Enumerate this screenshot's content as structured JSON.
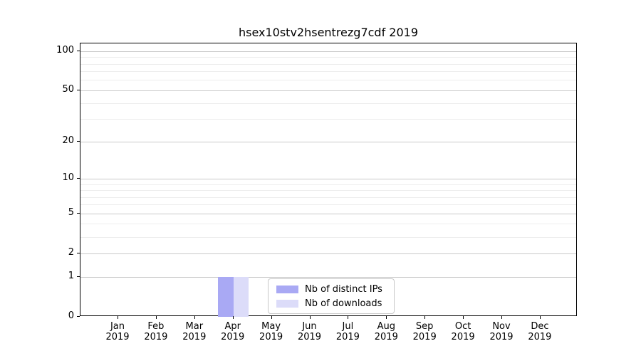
{
  "chart_data": {
    "type": "bar",
    "title": "hsex10stv2hsentrezg7cdf 2019",
    "xlabel": "",
    "ylabel": "",
    "x": {
      "categories": [
        "Jan",
        "Feb",
        "Mar",
        "Apr",
        "May",
        "Jun",
        "Jul",
        "Aug",
        "Sep",
        "Oct",
        "Nov",
        "Dec"
      ],
      "year": "2019"
    },
    "y_axis": {
      "scale": "log1p",
      "tick_values": [
        100,
        50,
        20,
        10,
        5,
        2,
        1,
        0
      ],
      "minor_tick_values": [
        3,
        4,
        6,
        7,
        8,
        9,
        30,
        40,
        60,
        70,
        80,
        90
      ],
      "ylim_approx": [
        0,
        115
      ],
      "grid": "horizontal"
    },
    "series": [
      {
        "name": "Nb of distinct IPs",
        "color": "#a9a9f4",
        "values": [
          0,
          0,
          0,
          1,
          0,
          0,
          0,
          0,
          0,
          0,
          0,
          0
        ]
      },
      {
        "name": "Nb of downloads",
        "color": "#dcdcf9",
        "values": [
          0,
          0,
          0,
          1,
          0,
          0,
          0,
          0,
          0,
          0,
          0,
          0
        ]
      }
    ],
    "legend": {
      "position": "inside-bottom-center",
      "entries": [
        "Nb of distinct IPs",
        "Nb of downloads"
      ]
    },
    "colors": {
      "major_grid": "#c9c9c9",
      "minor_grid": "#ededed",
      "frame": "#000000",
      "background": "#ffffff",
      "text": "#000000"
    }
  }
}
